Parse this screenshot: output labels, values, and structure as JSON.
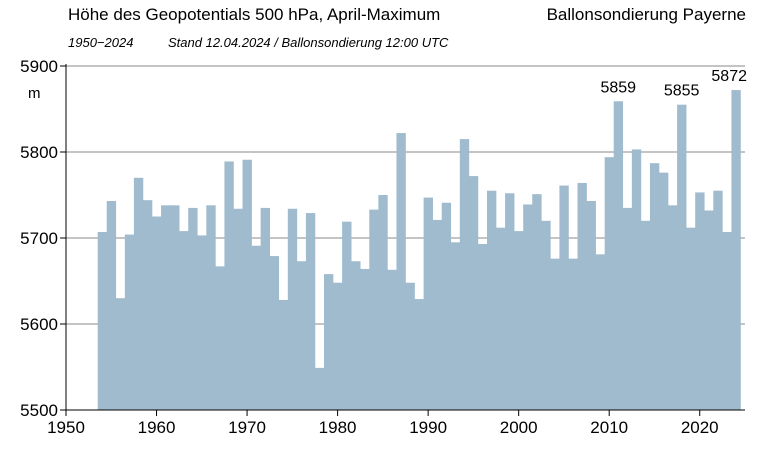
{
  "header": {
    "title": "Höhe des Geopotentials 500 hPa, April-Maximum",
    "station": "Ballonsondierung Payerne",
    "period": "1950−2024",
    "stand": "Stand 12.04.2024  /  Ballonsondierung 12:00 UTC"
  },
  "chart_data": {
    "type": "bar",
    "title": "Höhe des Geopotentials 500 hPa, April-Maximum",
    "ylabel": "m",
    "xlabel": "",
    "xlim": [
      1950,
      2025
    ],
    "ylim": [
      5500,
      5900
    ],
    "x_ticks": [
      1950,
      1960,
      1970,
      1980,
      1990,
      2000,
      2010,
      2020
    ],
    "y_ticks": [
      5500,
      5600,
      5700,
      5800,
      5900
    ],
    "grid": "horizontal",
    "bar_color": "#9fbbcd",
    "x": [
      1954,
      1955,
      1956,
      1957,
      1958,
      1959,
      1960,
      1961,
      1962,
      1963,
      1964,
      1965,
      1966,
      1967,
      1968,
      1969,
      1970,
      1971,
      1972,
      1973,
      1974,
      1975,
      1976,
      1977,
      1978,
      1979,
      1980,
      1981,
      1982,
      1983,
      1984,
      1985,
      1986,
      1987,
      1988,
      1989,
      1990,
      1991,
      1992,
      1993,
      1994,
      1995,
      1996,
      1997,
      1998,
      1999,
      2000,
      2001,
      2002,
      2003,
      2004,
      2005,
      2006,
      2007,
      2008,
      2009,
      2010,
      2011,
      2012,
      2013,
      2014,
      2015,
      2016,
      2017,
      2018,
      2019,
      2020,
      2021,
      2022,
      2023,
      2024
    ],
    "values": [
      5707,
      5743,
      5630,
      5704,
      5770,
      5744,
      5725,
      5738,
      5738,
      5708,
      5735,
      5703,
      5738,
      5667,
      5789,
      5734,
      5791,
      5691,
      5735,
      5679,
      5628,
      5734,
      5673,
      5729,
      5549,
      5658,
      5648,
      5719,
      5673,
      5664,
      5733,
      5750,
      5663,
      5822,
      5648,
      5629,
      5747,
      5721,
      5741,
      5695,
      5815,
      5772,
      5693,
      5755,
      5712,
      5752,
      5708,
      5739,
      5751,
      5720,
      5676,
      5761,
      5676,
      5764,
      5743,
      5681,
      5794,
      5859,
      5735,
      5803,
      5720,
      5787,
      5776,
      5738,
      5855,
      5712,
      5753,
      5732,
      5755,
      5707,
      5872
    ],
    "annotations": [
      {
        "year": 2011,
        "label": "5859"
      },
      {
        "year": 2018,
        "label": "5855"
      },
      {
        "year": 2024,
        "label": "5872"
      }
    ]
  }
}
